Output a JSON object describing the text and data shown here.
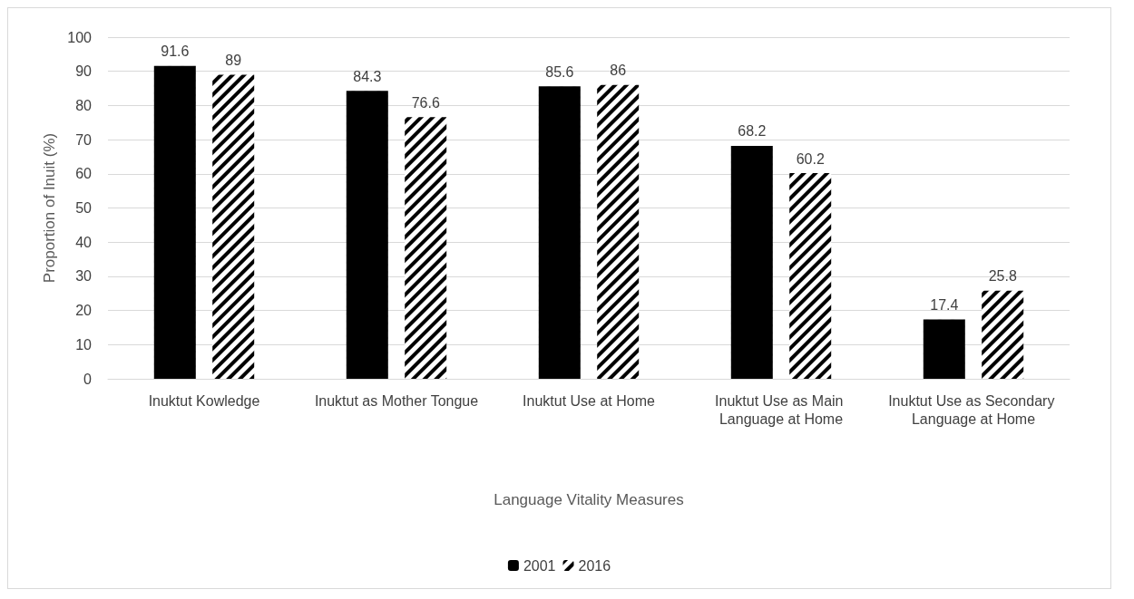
{
  "chart_data": {
    "type": "bar",
    "xlabel": "Language Vitality Measures",
    "ylabel": "Proportion of Inuit (%)",
    "categories": [
      "Inuktut Kowledge",
      "Inuktut as Mother Tongue",
      "Inuktut Use at Home",
      "Inuktut Use as Main Language at Home",
      "Inuktut Use as Secondary Language at Home"
    ],
    "series": [
      {
        "name": "2001",
        "color": "#000000",
        "values": [
          91.6,
          84.3,
          85.6,
          68.2,
          17.4
        ]
      },
      {
        "name": "2016",
        "color": "#000000",
        "values": [
          89,
          76.6,
          86,
          60.2,
          25.8
        ]
      }
    ],
    "ylim": [
      0,
      100
    ],
    "yticks": [
      0,
      10,
      20,
      30,
      40,
      50,
      60,
      70,
      80,
      90,
      100
    ],
    "grid": "y",
    "legend": "bottom",
    "data_labels": true
  }
}
